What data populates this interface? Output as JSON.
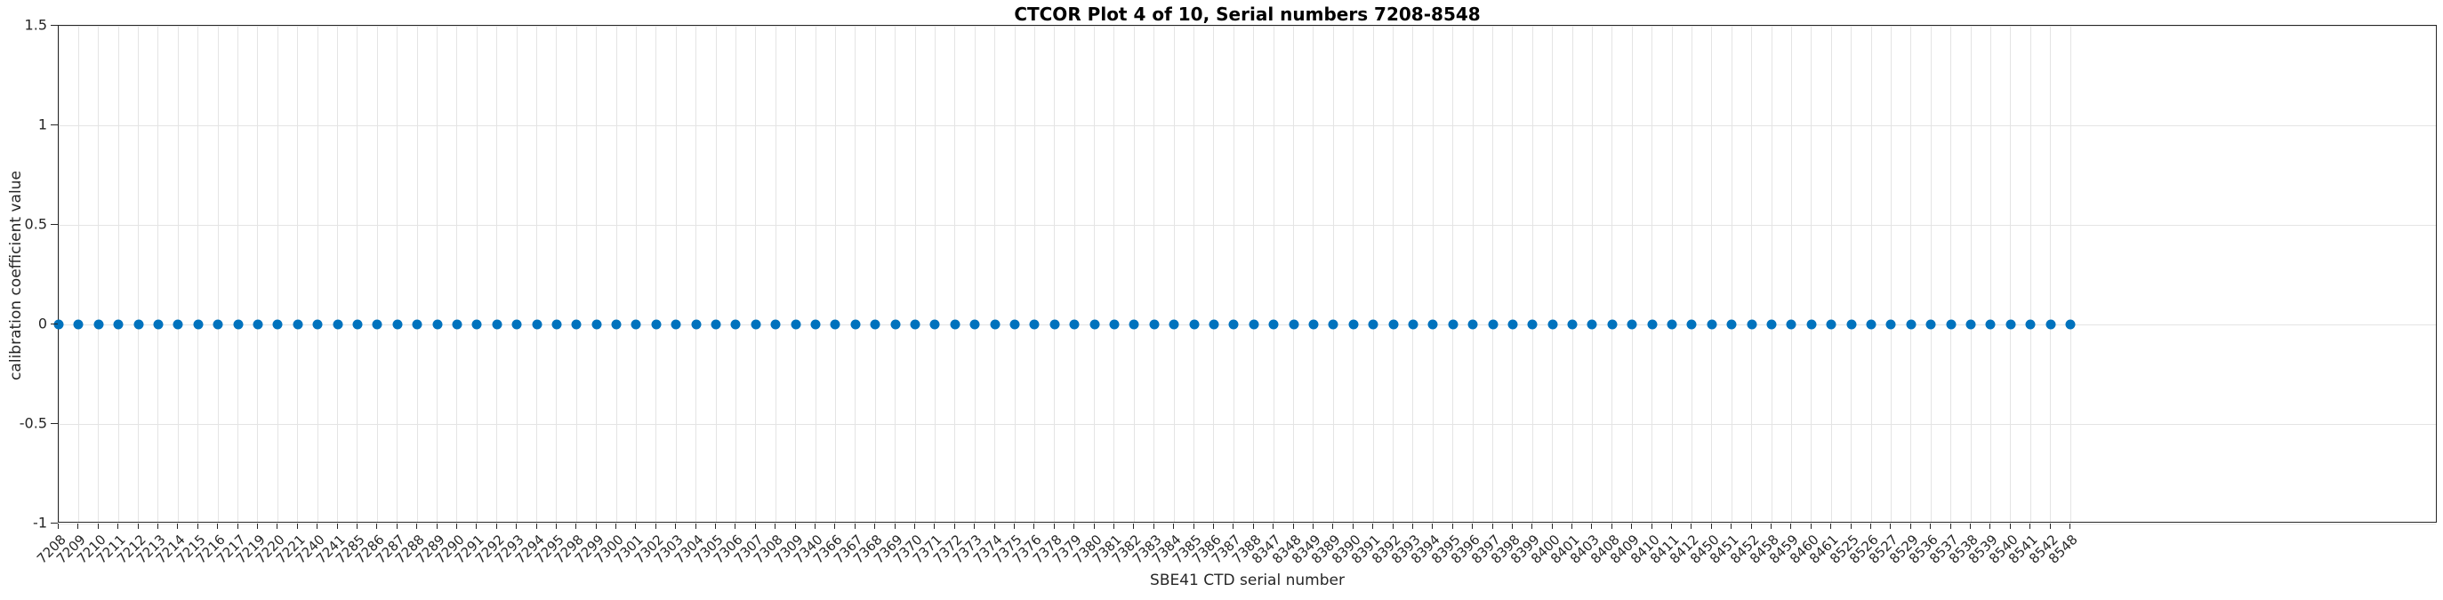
{
  "title": "CTCOR Plot 4 of 10, Serial numbers 7208-8548",
  "chart_data": {
    "type": "scatter",
    "title": "CTCOR Plot 4 of 10, Serial numbers 7208-8548",
    "xlabel": "SBE41 CTD serial number",
    "ylabel": "calibration coefficient value",
    "x_labels": [
      7208,
      7209,
      7210,
      7211,
      7212,
      7213,
      7214,
      7215,
      7216,
      7217,
      7219,
      7220,
      7221,
      7240,
      7241,
      7285,
      7286,
      7287,
      7288,
      7289,
      7290,
      7291,
      7292,
      7293,
      7294,
      7295,
      7298,
      7299,
      7300,
      7301,
      7302,
      7303,
      7304,
      7305,
      7306,
      7307,
      7308,
      7309,
      7340,
      7366,
      7367,
      7368,
      7369,
      7370,
      7371,
      7372,
      7373,
      7374,
      7375,
      7376,
      7378,
      7379,
      7380,
      7381,
      7382,
      7383,
      7384,
      7385,
      7386,
      7387,
      7388,
      8347,
      8348,
      8349,
      8389,
      8390,
      8391,
      8392,
      8393,
      8394,
      8395,
      8396,
      8397,
      8398,
      8399,
      8400,
      8401,
      8403,
      8408,
      8409,
      8410,
      8411,
      8412,
      8450,
      8451,
      8452,
      8458,
      8459,
      8460,
      8461,
      8525,
      8526,
      8527,
      8529,
      8536,
      8537,
      8538,
      8539,
      8540,
      8541,
      8542,
      8548
    ],
    "values": [
      0,
      0,
      0,
      0,
      0,
      0,
      0,
      0,
      0,
      0,
      0,
      0,
      0,
      0,
      0,
      0,
      0,
      0,
      0,
      0,
      0,
      0,
      0,
      0,
      0,
      0,
      0,
      0,
      0,
      0,
      0,
      0,
      0,
      0,
      0,
      0,
      0,
      0,
      0,
      0,
      0,
      0,
      0,
      0,
      0,
      0,
      0,
      0,
      0,
      0,
      0,
      0,
      0,
      0,
      0,
      0,
      0,
      0,
      0,
      0,
      0,
      0,
      0,
      0,
      0,
      0,
      0,
      0,
      0,
      0,
      0,
      0,
      0,
      0,
      0,
      0,
      0,
      0,
      0,
      0,
      0,
      0,
      0,
      0,
      0,
      0,
      0,
      0,
      0,
      0,
      0,
      0,
      0,
      0,
      0,
      0,
      0,
      0,
      0,
      0,
      0,
      0
    ],
    "ylim": [
      -1,
      1.5
    ],
    "yticks": [
      -1,
      -0.5,
      0,
      0.5,
      1,
      1.5
    ],
    "ytick_labels": [
      "-1",
      "-0.5",
      "0",
      "0.5",
      "1",
      "1.5"
    ],
    "grid": true,
    "legend": "none",
    "marker_color": "#0072BD",
    "axis_color": "#262626",
    "grid_color": "#e4e4e4"
  }
}
